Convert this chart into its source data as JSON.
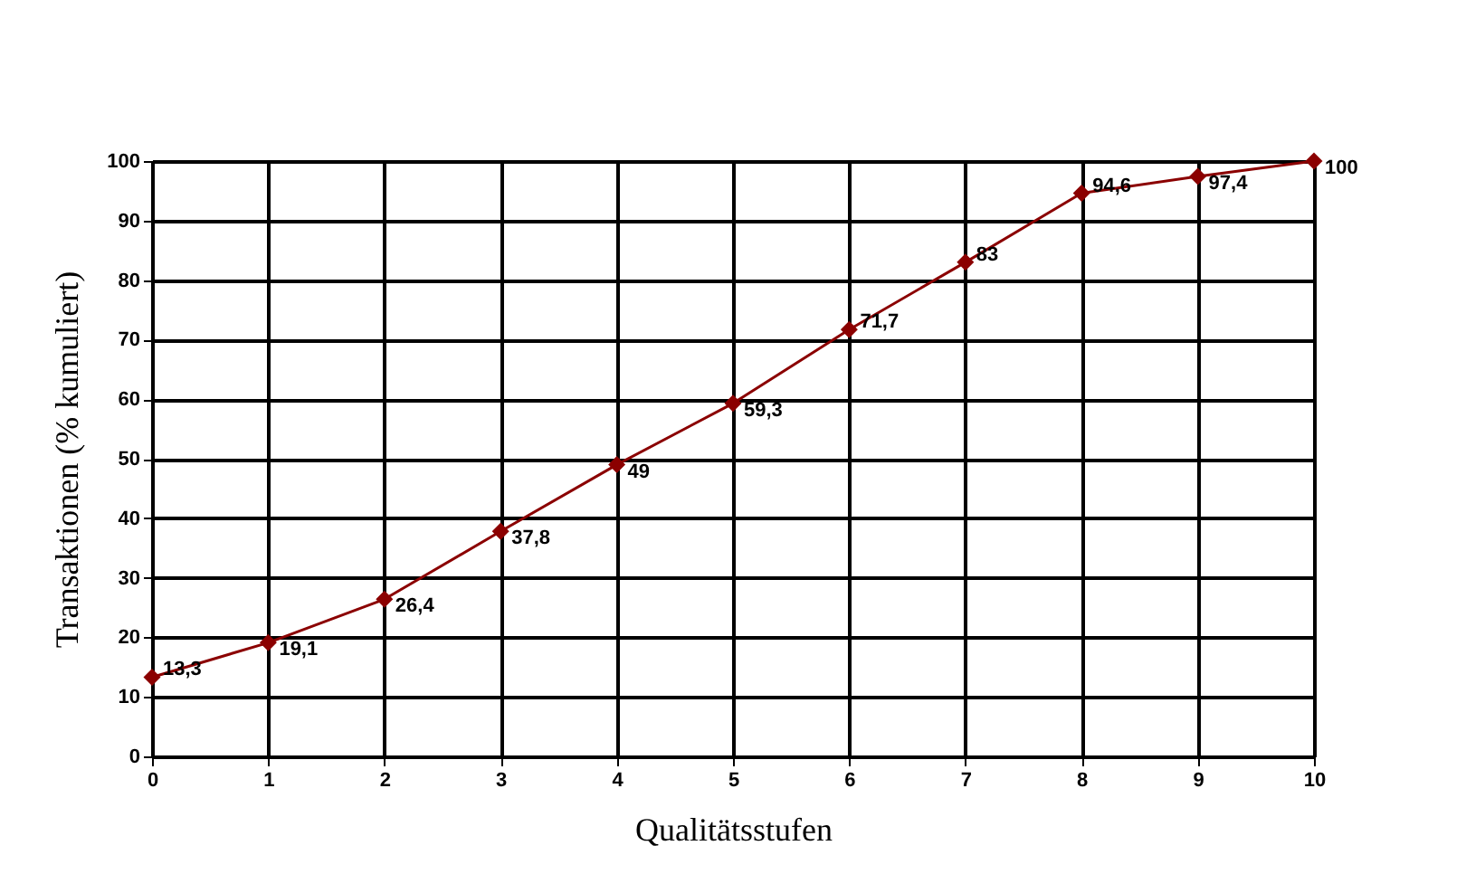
{
  "chart_data": {
    "type": "line",
    "xlabel": "Qualitätsstufen",
    "ylabel": "Transaktionen (% kumuliert)",
    "x": [
      0,
      1,
      2,
      3,
      4,
      5,
      6,
      7,
      8,
      9,
      10
    ],
    "series": [
      {
        "color": "#8b0000",
        "values": [
          13.3,
          19.1,
          26.4,
          37.8,
          49,
          59.3,
          71.7,
          83,
          94.6,
          97.4,
          100
        ],
        "value_labels": [
          "13,3",
          "19,1",
          "26,4",
          "37,8",
          "49",
          "59,3",
          "71,7",
          "83",
          "94,6",
          "97,4",
          "100"
        ]
      }
    ],
    "xlim": [
      0,
      10
    ],
    "xticks": [
      0,
      1,
      2,
      3,
      4,
      5,
      6,
      7,
      8,
      9,
      10
    ],
    "ylim": [
      0,
      100
    ],
    "yticks": [
      0,
      10,
      20,
      30,
      40,
      50,
      60,
      70,
      80,
      90,
      100
    ],
    "grid": true,
    "marker": "diamond",
    "line_style": "solid",
    "legend": false
  }
}
